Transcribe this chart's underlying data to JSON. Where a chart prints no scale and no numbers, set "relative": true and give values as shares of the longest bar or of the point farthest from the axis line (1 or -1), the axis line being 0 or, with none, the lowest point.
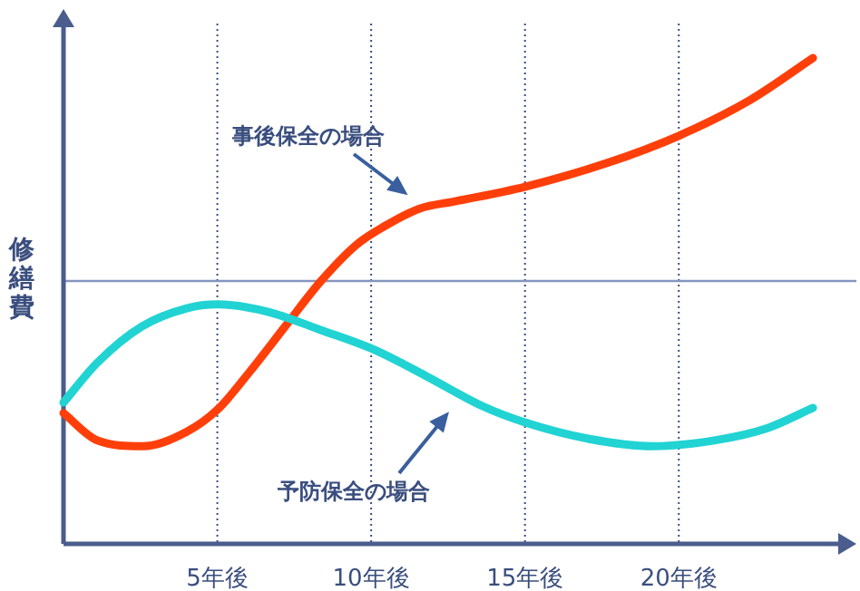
{
  "chart_data": {
    "type": "line",
    "relative": true,
    "ylabel": "修繕費",
    "xlim": [
      0,
      25.3
    ],
    "xticks": [
      {
        "value": 5,
        "label": "5年後"
      },
      {
        "value": 10,
        "label": "10年後"
      },
      {
        "value": 15,
        "label": "15年後"
      },
      {
        "value": 20,
        "label": "20年後"
      }
    ],
    "grid": "x",
    "series": [
      {
        "color": "#ff3f0a",
        "x": [
          0,
          1.1,
          2.56,
          4.01,
          5,
          6.05,
          7.21,
          8.37,
          9.53,
          10.41,
          11.57,
          12.73,
          15,
          17.67,
          20,
          22.33,
          24.36
        ],
        "values": [
          0.269,
          0.213,
          0.201,
          0.231,
          0.276,
          0.354,
          0.448,
          0.541,
          0.616,
          0.653,
          0.69,
          0.705,
          0.735,
          0.784,
          0.84,
          0.914,
          1.0
        ]
      },
      {
        "color": "#22d3d3",
        "x": [
          0,
          1.1,
          2.56,
          4.01,
          5,
          6.63,
          8.37,
          10.12,
          11.86,
          13.6,
          15,
          17.09,
          19.13,
          21.16,
          22.91,
          24.36
        ],
        "values": [
          0.291,
          0.373,
          0.448,
          0.485,
          0.493,
          0.478,
          0.44,
          0.399,
          0.343,
          0.284,
          0.25,
          0.216,
          0.201,
          0.213,
          0.239,
          0.28
        ]
      }
    ],
    "ref_lines": [
      {
        "axis": "y",
        "value": 0.541,
        "color": "#8595bd"
      }
    ],
    "annotations": [
      "事後保全の場合",
      "予防保全の場合"
    ]
  }
}
